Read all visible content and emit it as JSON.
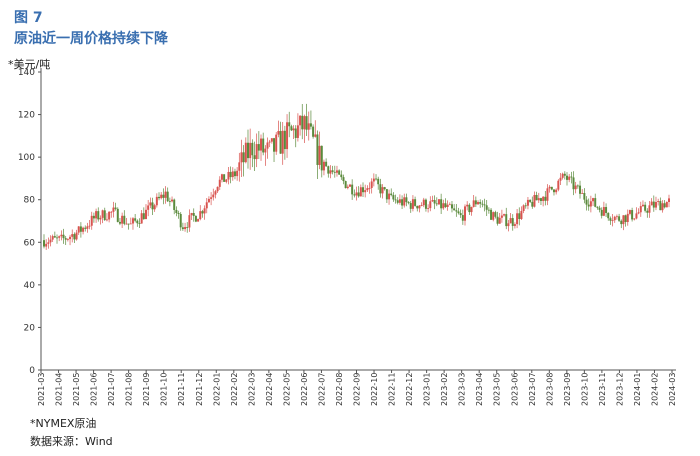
{
  "figure": {
    "label": "图 7",
    "title": "原油近一周价格持续下降",
    "unit": "*美元/吨",
    "note": "*NYMEX原油",
    "source": "数据来源：Wind"
  },
  "colors": {
    "up": "#d9534f",
    "down": "#5a8a3c",
    "axis": "#555555"
  },
  "chart_data": {
    "type": "candlestick",
    "ylim": [
      0,
      140
    ],
    "yticks": [
      0,
      20,
      40,
      60,
      80,
      100,
      120,
      140
    ],
    "categories": [
      "2021-03",
      "2021-04",
      "2021-05",
      "2021-06",
      "2021-07",
      "2021-08",
      "2021-09",
      "2021-10",
      "2021-11",
      "2021-12",
      "2022-01",
      "2022-02",
      "2022-03",
      "2022-04",
      "2022-05",
      "2022-06",
      "2022-07",
      "2022-08",
      "2022-09",
      "2022-10",
      "2022-11",
      "2022-12",
      "2023-01",
      "2023-02",
      "2023-03",
      "2023-04",
      "2023-05",
      "2023-06",
      "2023-07",
      "2023-08",
      "2023-09",
      "2023-10",
      "2023-11",
      "2023-12",
      "2024-01",
      "2024-02",
      "2024-03"
    ],
    "monthly_close": [
      61,
      61,
      65,
      72,
      74,
      68,
      75,
      83,
      68,
      74,
      88,
      92,
      105,
      102,
      110,
      115,
      98,
      90,
      84,
      88,
      80,
      78,
      78,
      77,
      72,
      80,
      71,
      70,
      78,
      83,
      91,
      82,
      76,
      71,
      73,
      77,
      79
    ]
  }
}
